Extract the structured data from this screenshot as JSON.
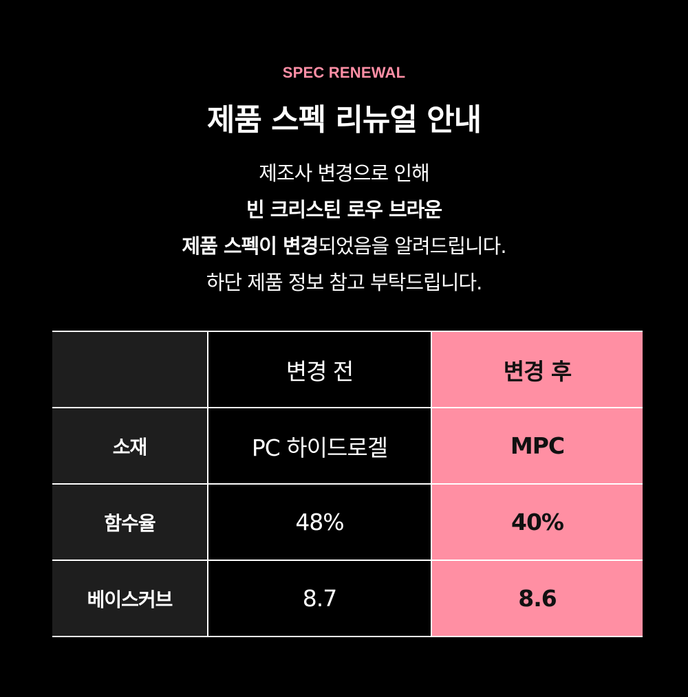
{
  "header": {
    "eyebrow": "SPEC RENEWAL",
    "title": "제품 스펙 리뉴얼 안내"
  },
  "intro": {
    "line1": "제조사 변경으로 인해",
    "line2_bold": "빈 크리스틴 로우 브라운",
    "line3_bold": "제품 스펙이 변경",
    "line3_rest": "되었음을 알려드립니다.",
    "line4": "하단 제품 정보 참고 부탁드립니다."
  },
  "table": {
    "headers": {
      "label": "",
      "before": "변경 전",
      "after": "변경 후"
    },
    "rows": [
      {
        "label": "소재",
        "before": "PC 하이드로겔",
        "after": "MPC"
      },
      {
        "label": "함수율",
        "before": "48%",
        "after": "40%"
      },
      {
        "label": "베이스커브",
        "before": "8.7",
        "after": "8.6"
      }
    ]
  },
  "colors": {
    "background": "#000000",
    "accent_pink": "#ff8fa3",
    "label_cell": "#1e1e1e",
    "text": "#ffffff"
  }
}
